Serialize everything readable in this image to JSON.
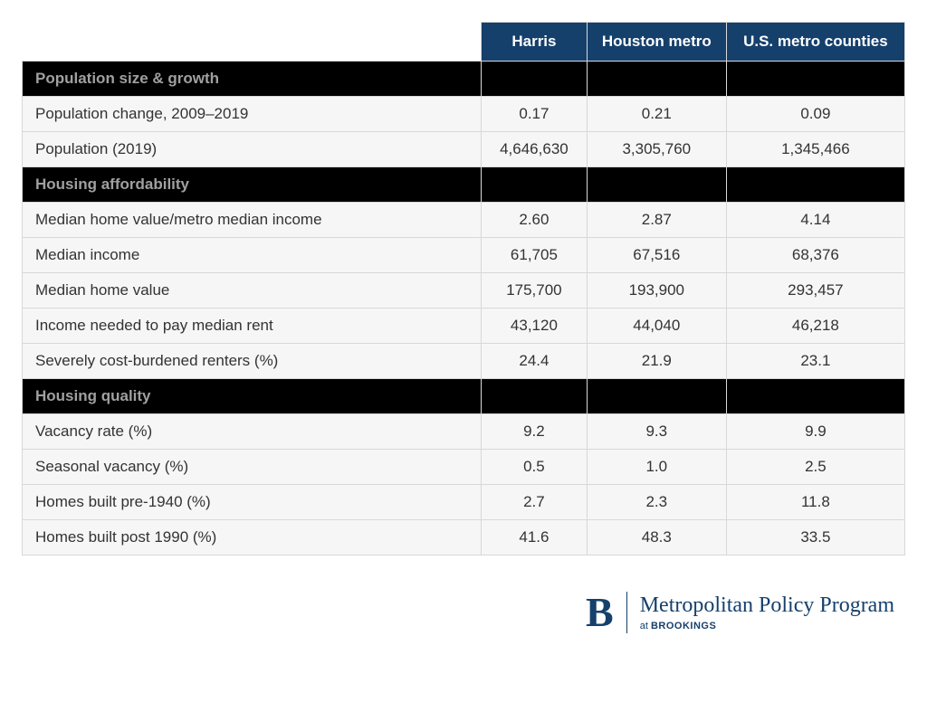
{
  "table": {
    "header_bg": "#15406b",
    "header_color": "#ffffff",
    "section_bg": "#000000",
    "section_color": "#a0a0a0",
    "row_bg": "#f6f6f6",
    "border_color": "#d8d8d8",
    "label_col_width": 478,
    "font_size": 17,
    "columns": [
      "Harris",
      "Houston metro",
      "U.S. metro counties"
    ],
    "sections": [
      {
        "title": "Population size & growth",
        "rows": [
          {
            "label": "Population change, 2009–2019",
            "vals": [
              "0.17",
              "0.21",
              "0.09"
            ]
          },
          {
            "label": "Population (2019)",
            "vals": [
              "4,646,630",
              "3,305,760",
              "1,345,466"
            ]
          }
        ]
      },
      {
        "title": "Housing affordability",
        "rows": [
          {
            "label": "Median home value/metro median income",
            "vals": [
              "2.60",
              "2.87",
              "4.14"
            ]
          },
          {
            "label": "Median income",
            "vals": [
              "61,705",
              "67,516",
              "68,376"
            ]
          },
          {
            "label": "Median home value",
            "vals": [
              "175,700",
              "193,900",
              "293,457"
            ]
          },
          {
            "label": "Income needed to pay median rent",
            "vals": [
              "43,120",
              "44,040",
              "46,218"
            ]
          },
          {
            "label": "Severely cost-burdened renters (%)",
            "vals": [
              "24.4",
              "21.9",
              "23.1"
            ]
          }
        ]
      },
      {
        "title": "Housing quality",
        "rows": [
          {
            "label": "Vacancy rate (%)",
            "vals": [
              "9.2",
              "9.3",
              "9.9"
            ]
          },
          {
            "label": "Seasonal vacancy (%)",
            "vals": [
              "0.5",
              "1.0",
              "2.5"
            ]
          },
          {
            "label": "Homes built pre-1940 (%)",
            "vals": [
              "2.7",
              "2.3",
              "11.8"
            ]
          },
          {
            "label": "Homes built post 1990 (%)",
            "vals": [
              "41.6",
              "48.3",
              "33.5"
            ]
          }
        ]
      }
    ]
  },
  "logo": {
    "letter": "B",
    "title": "Metropolitan Policy Program",
    "sub_prefix": "at ",
    "sub_bold": "BROOKINGS",
    "brand_color": "#15406b"
  }
}
